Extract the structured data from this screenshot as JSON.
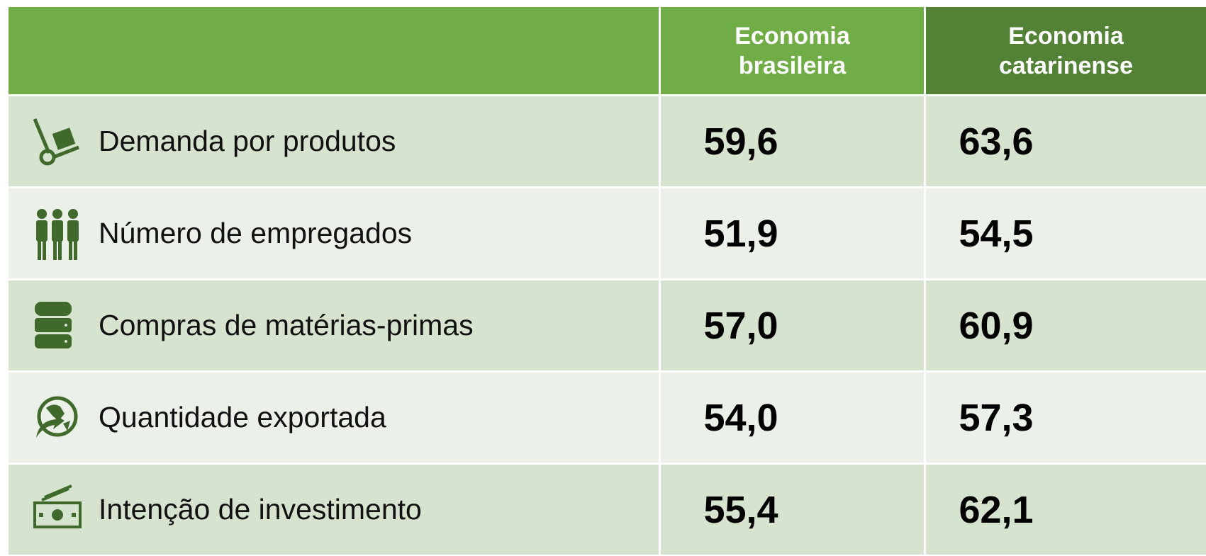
{
  "table": {
    "header": [
      [
        "Economia",
        "brasileira"
      ],
      [
        "Economia",
        "catarinense"
      ]
    ],
    "rows": [
      [
        "Demanda por produtos",
        "59,6",
        "63,6"
      ],
      [
        "Número de empregados",
        "51,9",
        "54,5"
      ],
      [
        "Compras de matérias-primas",
        "57,0",
        "60,9"
      ],
      [
        "Quantidade exportada",
        "54,0",
        "57,3"
      ],
      [
        "Intenção de investimento",
        "55,4",
        "62,1"
      ]
    ]
  }
}
